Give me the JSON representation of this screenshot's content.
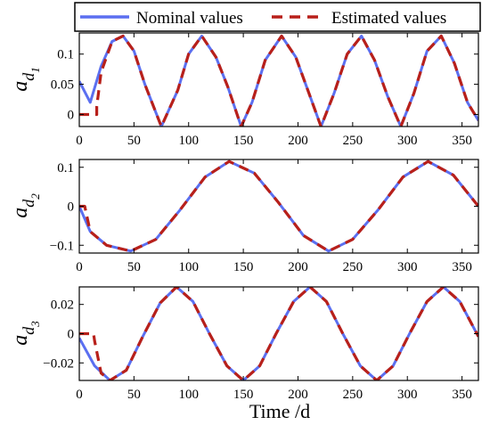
{
  "colors": {
    "nominal": "#5b6ff0",
    "estimated": "#b8201a",
    "axis": "#000000"
  },
  "legend": {
    "placement": "top",
    "items": [
      "Nominal values",
      "Estimated values"
    ]
  },
  "xlabel": "Time /d",
  "chart_data": [
    {
      "type": "line",
      "ylabel": {
        "base": "a",
        "sub": "d",
        "subsub": "1"
      },
      "xlim": [
        0,
        365
      ],
      "ylim": [
        -0.02,
        0.135
      ],
      "xticks": [
        0,
        50,
        100,
        150,
        200,
        250,
        300,
        350
      ],
      "yticks": [
        0,
        0.05,
        0.1
      ],
      "ytick_labels": [
        "0",
        "0.05",
        "0.1"
      ],
      "series": [
        {
          "name": "Nominal values",
          "x": [
            0,
            10,
            20,
            30,
            40,
            50,
            60,
            75,
            90,
            100,
            112,
            125,
            136,
            148,
            158,
            170,
            185,
            198,
            210,
            221,
            233,
            245,
            258,
            270,
            282,
            294,
            306,
            318,
            331,
            343,
            355,
            365
          ],
          "y": [
            0.055,
            0.02,
            0.08,
            0.121,
            0.13,
            0.105,
            0.05,
            -0.02,
            0.04,
            0.1,
            0.13,
            0.095,
            0.045,
            -0.02,
            0.02,
            0.09,
            0.13,
            0.095,
            0.035,
            -0.02,
            0.035,
            0.1,
            0.13,
            0.09,
            0.03,
            -0.02,
            0.035,
            0.105,
            0.13,
            0.085,
            0.02,
            -0.01
          ]
        },
        {
          "name": "Estimated values",
          "x": [
            0,
            15,
            16,
            16,
            20,
            30,
            40,
            50,
            60,
            75,
            90,
            100,
            112,
            125,
            136,
            148,
            158,
            170,
            185,
            198,
            210,
            221,
            233,
            245,
            258,
            270,
            282,
            294,
            306,
            318,
            331,
            343,
            355,
            365
          ],
          "y": [
            0,
            0,
            0,
            0.013,
            0.07,
            0.121,
            0.13,
            0.105,
            0.05,
            -0.02,
            0.04,
            0.1,
            0.13,
            0.095,
            0.045,
            -0.02,
            0.02,
            0.09,
            0.13,
            0.095,
            0.035,
            -0.02,
            0.035,
            0.1,
            0.13,
            0.09,
            0.03,
            -0.02,
            0.035,
            0.105,
            0.13,
            0.085,
            0.02,
            -0.01
          ]
        }
      ]
    },
    {
      "type": "line",
      "ylabel": {
        "base": "a",
        "sub": "d",
        "subsub": "2"
      },
      "xlim": [
        0,
        365
      ],
      "ylim": [
        -0.12,
        0.12
      ],
      "xticks": [
        0,
        50,
        100,
        150,
        200,
        250,
        300,
        350
      ],
      "yticks": [
        -0.1,
        0,
        0.1
      ],
      "ytick_labels": [
        "−0.1",
        "0",
        "0.1"
      ],
      "series": [
        {
          "name": "Nominal values",
          "x": [
            0,
            10,
            25,
            47,
            70,
            92,
            115,
            137,
            160,
            182,
            205,
            228,
            250,
            273,
            296,
            319,
            342,
            365
          ],
          "y": [
            0,
            -0.065,
            -0.1,
            -0.115,
            -0.085,
            -0.01,
            0.075,
            0.115,
            0.085,
            0.01,
            -0.075,
            -0.115,
            -0.085,
            -0.01,
            0.075,
            0.115,
            0.08,
            0
          ]
        },
        {
          "name": "Estimated values",
          "x": [
            0,
            5,
            10,
            25,
            47,
            70,
            92,
            115,
            137,
            160,
            182,
            205,
            228,
            250,
            273,
            296,
            319,
            342,
            365
          ],
          "y": [
            0,
            0,
            -0.065,
            -0.1,
            -0.115,
            -0.085,
            -0.01,
            0.075,
            0.115,
            0.085,
            0.01,
            -0.075,
            -0.115,
            -0.085,
            -0.01,
            0.075,
            0.115,
            0.08,
            0
          ]
        }
      ]
    },
    {
      "type": "line",
      "ylabel": {
        "base": "a",
        "sub": "d",
        "subsub": "3"
      },
      "xlim": [
        0,
        365
      ],
      "ylim": [
        -0.032,
        0.032
      ],
      "xticks": [
        0,
        50,
        100,
        150,
        200,
        250,
        300,
        350
      ],
      "yticks": [
        -0.02,
        0,
        0.02
      ],
      "ytick_labels": [
        "−0.02",
        "0",
        "0.02"
      ],
      "series": [
        {
          "name": "Nominal values",
          "x": [
            0,
            14,
            28,
            43,
            58,
            74,
            89,
            104,
            119,
            135,
            150,
            165,
            180,
            196,
            211,
            226,
            241,
            257,
            272,
            287,
            302,
            318,
            333,
            348,
            365
          ],
          "y": [
            -0.003,
            -0.022,
            -0.032,
            -0.025,
            -0.002,
            0.021,
            0.032,
            0.022,
            0.0,
            -0.022,
            -0.032,
            -0.022,
            0.0,
            0.022,
            0.032,
            0.022,
            0.0,
            -0.022,
            -0.032,
            -0.022,
            0.0,
            0.022,
            0.032,
            0.022,
            -0.002
          ]
        },
        {
          "name": "Estimated values",
          "x": [
            0,
            13,
            14,
            20,
            28,
            43,
            58,
            74,
            89,
            104,
            119,
            135,
            150,
            165,
            180,
            196,
            211,
            226,
            241,
            257,
            272,
            287,
            302,
            318,
            333,
            348,
            365
          ],
          "y": [
            0,
            0,
            -0.005,
            -0.027,
            -0.032,
            -0.025,
            -0.002,
            0.021,
            0.032,
            0.022,
            0.0,
            -0.022,
            -0.032,
            -0.022,
            0.0,
            0.022,
            0.032,
            0.022,
            0.0,
            -0.022,
            -0.032,
            -0.022,
            0.0,
            0.022,
            0.032,
            0.022,
            -0.002
          ]
        }
      ]
    }
  ]
}
